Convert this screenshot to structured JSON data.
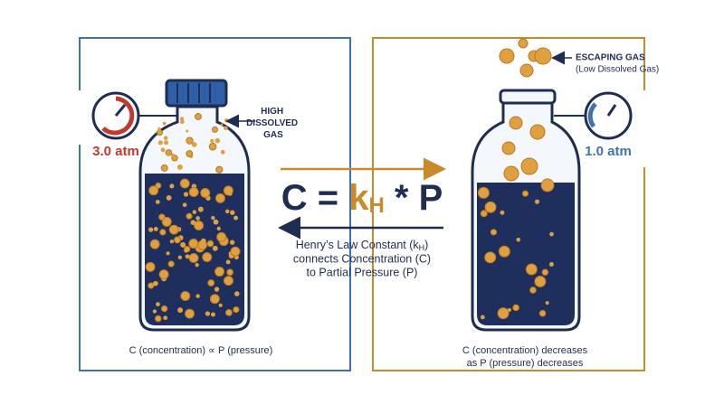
{
  "left_panel": {
    "gauge_label": "3.0 atm",
    "callout": [
      "HIGH",
      "DISSOLVED",
      "GAS"
    ],
    "caption": "C (concentration) ∝ P (pressure)"
  },
  "right_panel": {
    "gauge_label": "1.0 atm",
    "callout": [
      "ESCAPING GAS",
      "(Low Dissolved Gas)"
    ],
    "caption": [
      "C (concentration) decreases",
      "as P (pressure) decreases"
    ]
  },
  "equation": {
    "left": "C =",
    "k": "k",
    "subscript": "H",
    "right": "* P"
  },
  "explanation": {
    "line1": [
      "Henry’s Law Constant (k",
      "H",
      ")"
    ],
    "line2": "connects Concentration (C)",
    "line3": "to Partial Pressure (P)"
  }
}
